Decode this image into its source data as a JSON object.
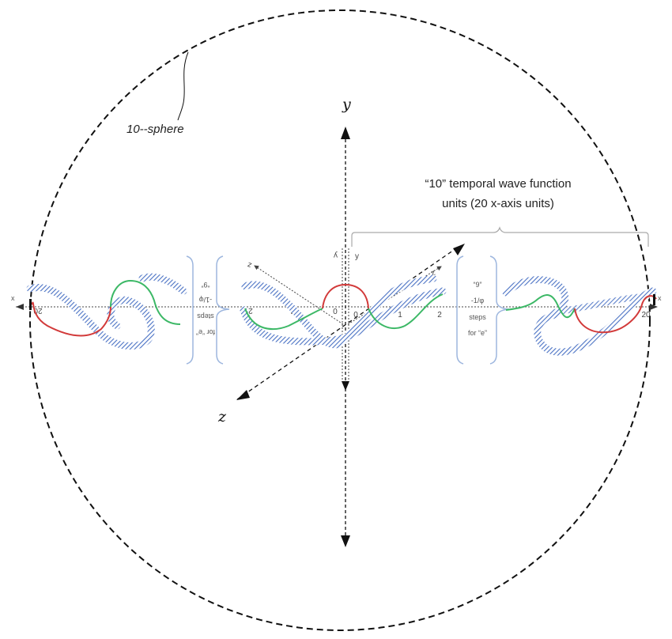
{
  "sphere_label": "10--sphere",
  "annotation": {
    "line1": "“10” temporal wave function",
    "line2": "units (20 x-axis units)"
  },
  "axes": {
    "big_y": "y",
    "big_z": "z",
    "small_x_left": "x",
    "small_x_right": "x",
    "small_y_left": "y",
    "small_y_right": "y",
    "small_z_left": "z",
    "small_z_right": "z"
  },
  "ticks": {
    "left_20": "20",
    "left_2": "2",
    "left_1": "1",
    "left_0": "0",
    "right_0": "0",
    "right_1": "1",
    "right_2": "2",
    "right_20": "20"
  },
  "steps_left": [
    "“9”",
    "-1/φ",
    "steps",
    "for “e”"
  ],
  "steps_right": [
    "“9”",
    "-1/φ",
    "steps",
    "for “e”"
  ],
  "colors": {
    "wave_blue": "#4a72c4",
    "wave_red": "#d23a3a",
    "wave_green": "#3cb866",
    "brace": "#9db6de",
    "axis": "#111111"
  }
}
